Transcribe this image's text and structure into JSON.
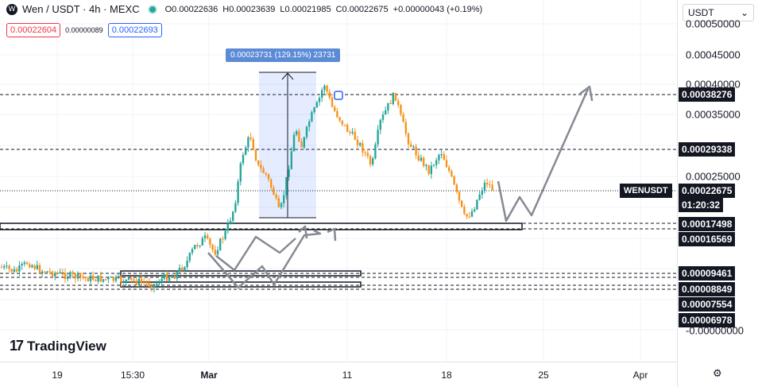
{
  "header": {
    "symbol_icon": "W",
    "title": "Wen / USDT · 4h · MEXC",
    "open": "O0.00022636",
    "high": "H0.00023639",
    "low": "L0.00021985",
    "close": "C0.00022675",
    "change": "+0.00000043 (+0.19%)",
    "sell_price": "0.00022604",
    "spread": "0.00000089",
    "buy_price": "0.00022693"
  },
  "currency_selector": {
    "value": "USDT",
    "icon": "chevron-down-icon"
  },
  "price_axis": {
    "ticks": [
      "0.00050000",
      "0.00045000",
      "0.00040000",
      "0.00035000",
      "0.00025000",
      "-0.00000000"
    ],
    "labels": [
      "0.00038276",
      "0.00029338",
      "0.00022675",
      "01:20:32",
      "0.00017498",
      "0.00016569",
      "0.00009461",
      "0.00008849",
      "0.00007554",
      "0.00006978"
    ],
    "symbol_tag": "WENUSDT"
  },
  "time_axis": {
    "labels": [
      "19",
      "15:30",
      "Mar",
      "11",
      "18",
      "25",
      "Apr"
    ]
  },
  "measure": {
    "label": "0.00023731 (129.15%) 23731"
  },
  "branding": {
    "logo_mark": "17",
    "name": "TradingView"
  },
  "colors": {
    "up": "#26a69a",
    "down": "#f7931a",
    "accent": "#2962ff",
    "sell": "#f23645",
    "measure": "#5b8ad6"
  }
}
